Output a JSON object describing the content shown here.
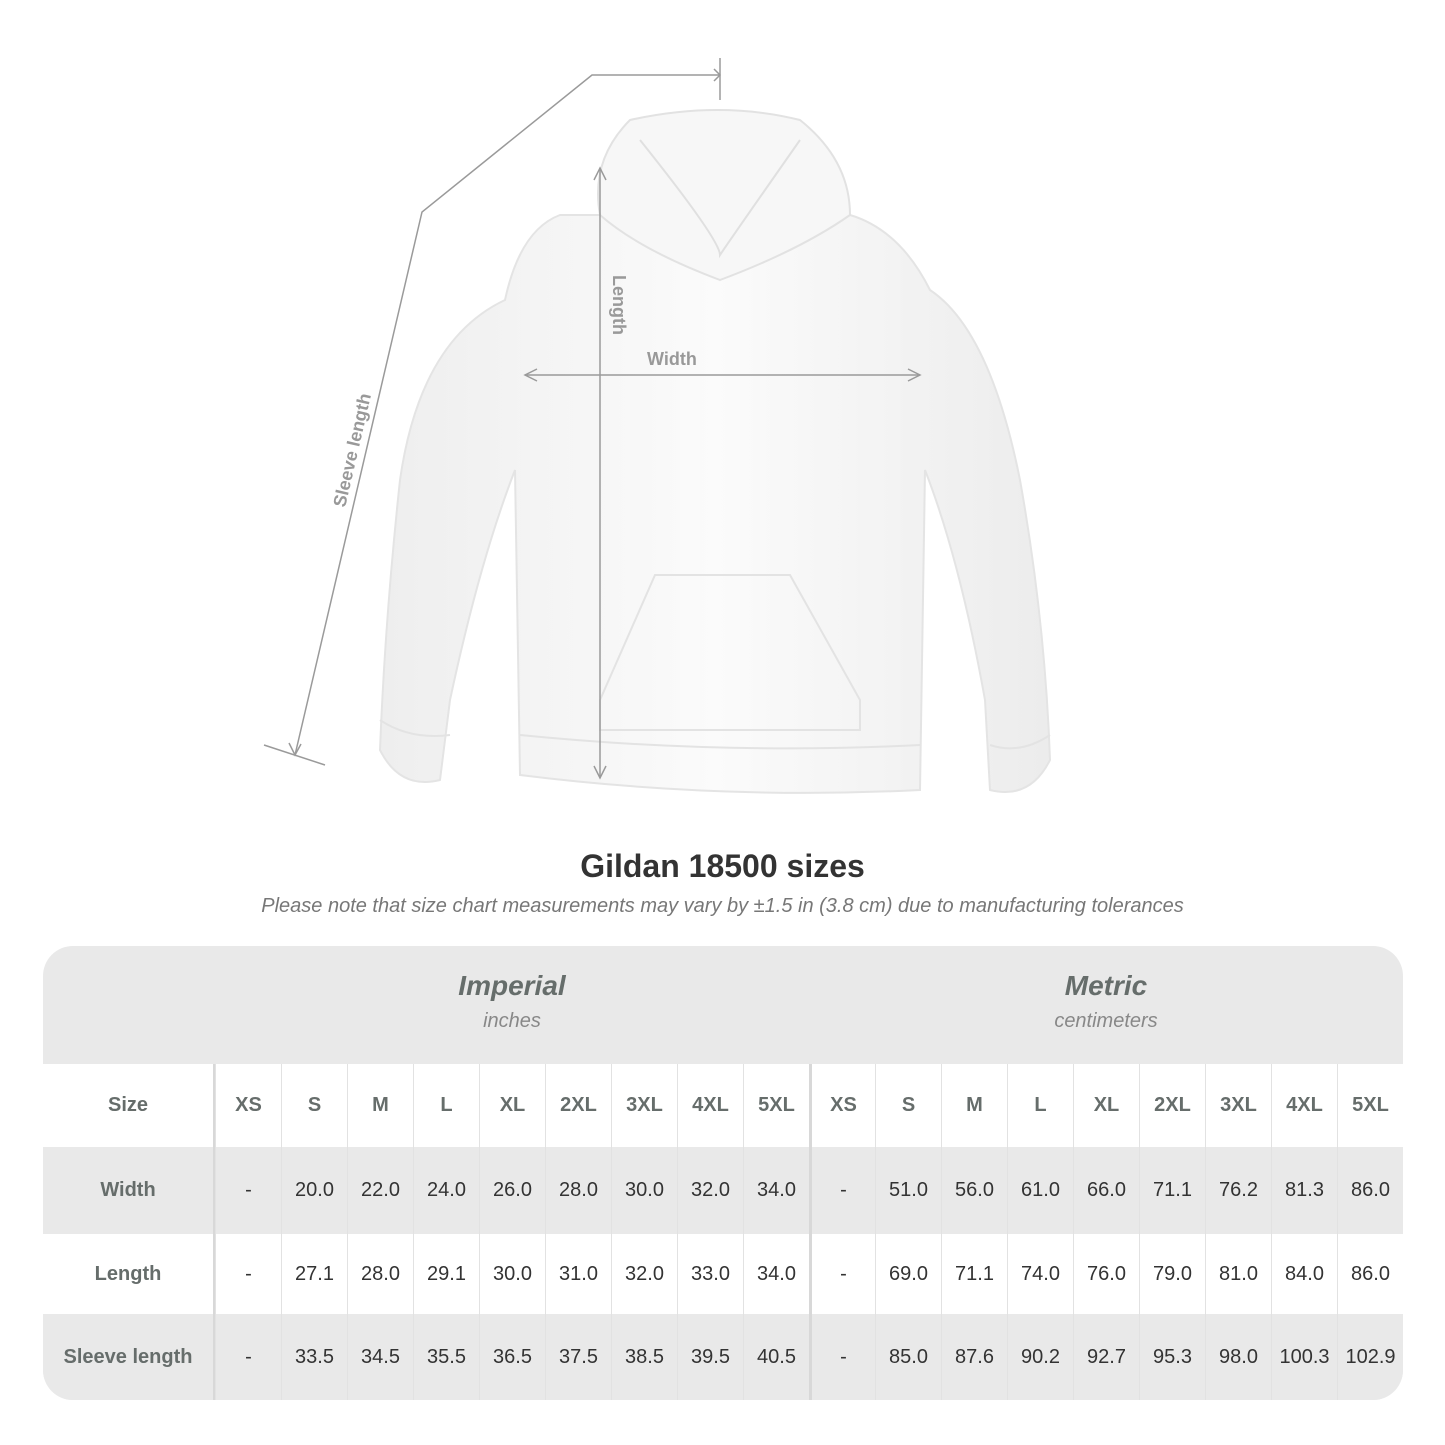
{
  "diagram": {
    "labels": {
      "sleeve": "Sleeve length",
      "length": "Length",
      "width": "Width"
    },
    "line_color": "#9a9a9a"
  },
  "title": "Gildan 18500 sizes",
  "subtitle": "Please note that size chart measurements may vary by ±1.5 in (3.8 cm) due to manufacturing tolerances",
  "table": {
    "imperial": {
      "label": "Imperial",
      "unit": "inches"
    },
    "metric": {
      "label": "Metric",
      "unit": "centimeters"
    },
    "size_header": "Size",
    "sizes": [
      "XS",
      "S",
      "M",
      "L",
      "XL",
      "2XL",
      "3XL",
      "4XL",
      "5XL"
    ],
    "rows": [
      {
        "label": "Width",
        "imperial": [
          "-",
          "20.0",
          "22.0",
          "24.0",
          "26.0",
          "28.0",
          "30.0",
          "32.0",
          "34.0"
        ],
        "metric": [
          "-",
          "51.0",
          "56.0",
          "61.0",
          "66.0",
          "71.1",
          "76.2",
          "81.3",
          "86.0"
        ]
      },
      {
        "label": "Length",
        "imperial": [
          "-",
          "27.1",
          "28.0",
          "29.1",
          "30.0",
          "31.0",
          "32.0",
          "33.0",
          "34.0"
        ],
        "metric": [
          "-",
          "69.0",
          "71.1",
          "74.0",
          "76.0",
          "79.0",
          "81.0",
          "84.0",
          "86.0"
        ]
      },
      {
        "label": "Sleeve length",
        "imperial": [
          "-",
          "33.5",
          "34.5",
          "35.5",
          "36.5",
          "37.5",
          "38.5",
          "39.5",
          "40.5"
        ],
        "metric": [
          "-",
          "85.0",
          "87.6",
          "90.2",
          "92.7",
          "95.3",
          "98.0",
          "100.3",
          "102.9"
        ]
      }
    ]
  }
}
